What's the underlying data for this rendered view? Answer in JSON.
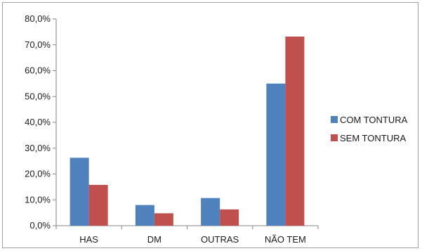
{
  "chart_data": {
    "type": "bar",
    "categories": [
      "HAS",
      "DM",
      "OUTRAS",
      "NÃO TEM"
    ],
    "series": [
      {
        "name": "COM TONTURA",
        "color": "#4f81bd",
        "values": [
          26.3,
          8.0,
          10.7,
          55.0
        ]
      },
      {
        "name": "SEM TONTURA",
        "color": "#c0504d",
        "values": [
          15.8,
          4.8,
          6.3,
          73.2
        ]
      }
    ],
    "y_ticks": [
      "0,0%",
      "10,0%",
      "20,0%",
      "30,0%",
      "40,0%",
      "50,0%",
      "60,0%",
      "70,0%",
      "80,0%"
    ],
    "ylim": [
      0,
      80
    ],
    "grid": false,
    "legend_position": "right",
    "title": "",
    "xlabel": "",
    "ylabel": ""
  }
}
